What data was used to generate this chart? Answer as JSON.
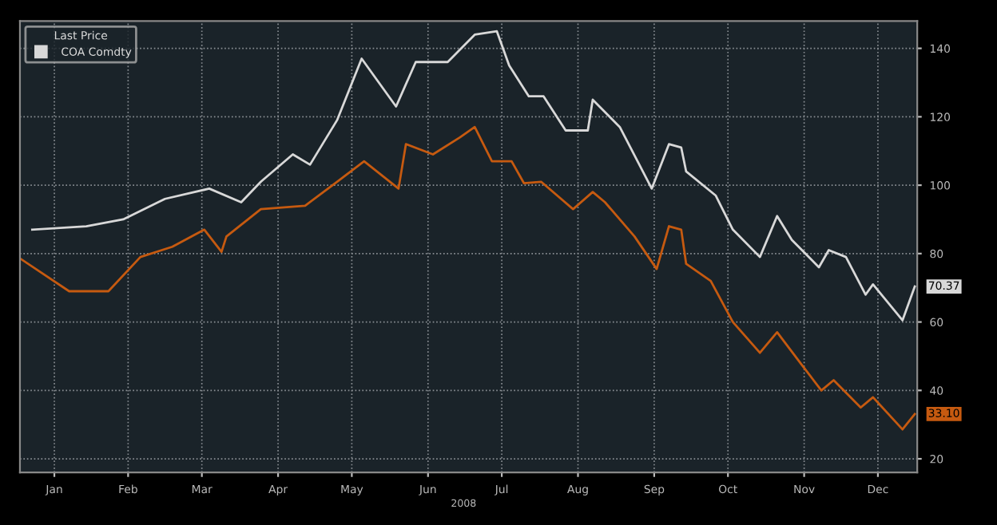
{
  "chart_data": {
    "type": "line",
    "legend_title": "Last Price",
    "legend": "top left",
    "grid": true,
    "marker": "none",
    "line_style": "solid",
    "xlim": [
      "2008-01-02",
      "2009-01-01"
    ],
    "ylim": [
      16,
      148
    ],
    "yticks": [
      20,
      40,
      60,
      80,
      100,
      120,
      140
    ],
    "xticks": [
      {
        "value": "2008-01-16",
        "label": "Jan"
      },
      {
        "value": "2008-02-15",
        "label": "Feb"
      },
      {
        "value": "2008-03-16",
        "label": "Mar"
      },
      {
        "value": "2008-04-16",
        "label": "Apr"
      },
      {
        "value": "2008-05-16",
        "label": "May"
      },
      {
        "value": "2008-06-16",
        "label": "Jun"
      },
      {
        "value": "2008-07-16",
        "label": "Jul"
      },
      {
        "value": "2008-08-16",
        "label": "Aug"
      },
      {
        "value": "2008-09-16",
        "label": "Sep"
      },
      {
        "value": "2008-10-16",
        "label": "Oct"
      },
      {
        "value": "2008-11-16",
        "label": "Nov"
      },
      {
        "value": "2008-12-16",
        "label": "Dec"
      }
    ],
    "annotations": [
      "2008",
      {
        "text": "70.37",
        "x": "2008-12-31",
        "y": 70.37
      },
      {
        "text": "33.10",
        "x": "2008-12-31",
        "y": 33.1
      }
    ],
    "series": [
      {
        "name": "COA Comdty",
        "color": "#d8d8d8",
        "x": [
          "2008-01-07",
          "2008-01-29",
          "2008-02-13",
          "2008-03-01",
          "2008-03-19",
          "2008-04-01",
          "2008-04-09",
          "2008-04-22",
          "2008-04-29",
          "2008-05-10",
          "2008-05-20",
          "2008-06-03",
          "2008-06-11",
          "2008-06-24",
          "2008-07-05",
          "2008-07-14",
          "2008-07-19",
          "2008-07-27",
          "2008-08-02",
          "2008-08-11",
          "2008-08-20",
          "2008-08-22",
          "2008-09-02",
          "2008-09-15",
          "2008-09-22",
          "2008-09-27",
          "2008-09-29",
          "2008-10-11",
          "2008-10-18",
          "2008-10-29",
          "2008-11-05",
          "2008-11-11",
          "2008-11-22",
          "2008-11-26",
          "2008-12-03",
          "2008-12-11",
          "2008-12-14",
          "2008-12-26",
          "2008-12-31"
        ],
        "values": [
          87,
          88,
          90,
          96,
          99,
          95,
          101,
          109,
          106,
          119,
          137,
          123,
          136,
          136,
          144,
          145,
          135,
          126,
          126,
          116,
          116,
          125,
          117,
          99,
          112,
          111,
          104,
          97,
          87,
          79,
          91,
          84,
          76,
          81,
          79,
          68,
          71,
          60.5,
          70.37
        ]
      },
      {
        "color": "#c65a10",
        "x": [
          "2008-01-02",
          "2008-01-22",
          "2008-02-07",
          "2008-02-20",
          "2008-03-04",
          "2008-03-17",
          "2008-03-24",
          "2008-03-26",
          "2008-04-09",
          "2008-04-27",
          "2008-05-10",
          "2008-05-21",
          "2008-06-04",
          "2008-06-07",
          "2008-06-18",
          "2008-06-29",
          "2008-07-05",
          "2008-07-12",
          "2008-07-20",
          "2008-07-25",
          "2008-08-01",
          "2008-08-14",
          "2008-08-22",
          "2008-08-27",
          "2008-09-08",
          "2008-09-17",
          "2008-09-22",
          "2008-09-27",
          "2008-09-29",
          "2008-10-09",
          "2008-10-18",
          "2008-10-29",
          "2008-11-05",
          "2008-11-15",
          "2008-11-23",
          "2008-11-28",
          "2008-12-09",
          "2008-12-14",
          "2008-12-26",
          "2008-12-31"
        ],
        "values": [
          78.6,
          69,
          69,
          79,
          82,
          87,
          80.5,
          85,
          93,
          94,
          101,
          107,
          99,
          112,
          109,
          114,
          117,
          107,
          107,
          100.6,
          101,
          93,
          98,
          95,
          85,
          75.5,
          88,
          87,
          77,
          72,
          60,
          51,
          57,
          47.5,
          40,
          43,
          35,
          38,
          28.6,
          33.1
        ]
      }
    ]
  }
}
